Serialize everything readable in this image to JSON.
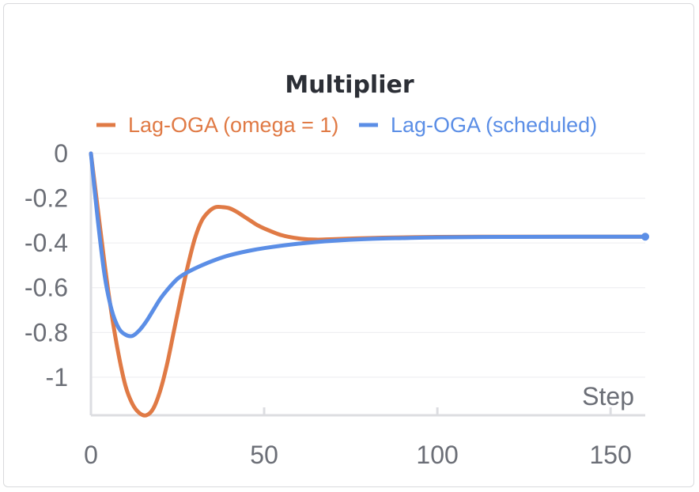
{
  "chart_data": {
    "type": "line",
    "title": "Multiplier",
    "xlabel": "Step",
    "ylabel": "",
    "xlim": [
      0,
      160
    ],
    "ylim": [
      -1.17,
      0
    ],
    "x_ticks": [
      0,
      50,
      100,
      150
    ],
    "x_tick_labels": [
      "0",
      "50",
      "100",
      "150"
    ],
    "y_ticks": [
      0,
      -0.2,
      -0.4,
      -0.6,
      -0.8,
      -1
    ],
    "y_tick_labels": [
      "0",
      "-0.2",
      "-0.4",
      "-0.6",
      "-0.8",
      "-1"
    ],
    "grid": true,
    "legend_position": "top",
    "series": [
      {
        "name": "Lag-OGA (omega = 1)",
        "color": "#e07a45",
        "x": [
          0,
          2,
          4,
          6,
          8,
          10,
          12,
          14,
          16,
          18,
          20,
          22,
          24,
          26,
          28,
          30,
          32,
          34,
          36,
          38,
          40,
          42,
          44,
          46,
          48,
          50,
          55,
          60,
          65,
          70,
          80,
          90,
          100,
          120,
          140,
          160
        ],
        "y": [
          0,
          -0.25,
          -0.5,
          -0.72,
          -0.9,
          -1.04,
          -1.12,
          -1.16,
          -1.17,
          -1.14,
          -1.06,
          -0.94,
          -0.79,
          -0.64,
          -0.5,
          -0.38,
          -0.3,
          -0.26,
          -0.24,
          -0.24,
          -0.245,
          -0.26,
          -0.28,
          -0.3,
          -0.32,
          -0.335,
          -0.365,
          -0.38,
          -0.385,
          -0.383,
          -0.378,
          -0.375,
          -0.373,
          -0.372,
          -0.372,
          -0.372
        ]
      },
      {
        "name": "Lag-OGA (scheduled)",
        "color": "#5b8ee6",
        "x": [
          0,
          2,
          4,
          6,
          8,
          10,
          12,
          14,
          16,
          18,
          20,
          22,
          25,
          28,
          32,
          36,
          40,
          45,
          50,
          60,
          70,
          80,
          90,
          100,
          120,
          140,
          160
        ],
        "y": [
          0,
          -0.3,
          -0.55,
          -0.7,
          -0.78,
          -0.81,
          -0.815,
          -0.79,
          -0.75,
          -0.7,
          -0.65,
          -0.61,
          -0.56,
          -0.53,
          -0.5,
          -0.475,
          -0.455,
          -0.437,
          -0.423,
          -0.403,
          -0.39,
          -0.382,
          -0.378,
          -0.375,
          -0.373,
          -0.372,
          -0.372
        ]
      }
    ]
  }
}
